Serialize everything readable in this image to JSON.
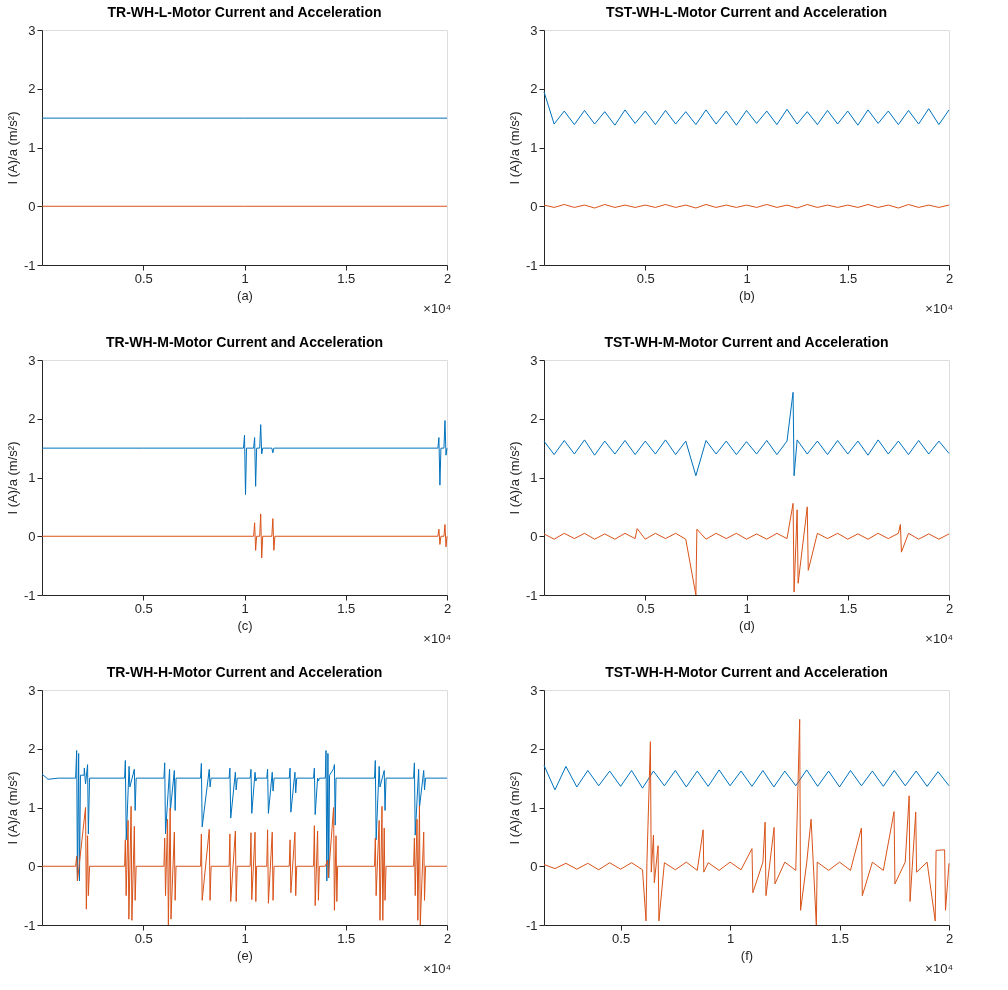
{
  "chart_data": [
    {
      "type": "line",
      "title": "TR-WH-L-Motor Current and Acceleration",
      "xlabel": "(a)",
      "ylabel": "I (A)/a (m/s²)",
      "annotations": [
        "×10⁴"
      ],
      "xlim": [
        0,
        2
      ],
      "xticks": [
        0.5,
        1,
        1.5,
        2
      ],
      "ylim": [
        -1,
        3
      ],
      "yticks": [
        -1,
        0,
        1,
        2,
        3
      ],
      "grid": false,
      "series": [
        {
          "color": "#0072bd",
          "x": [
            0,
            1,
            2
          ],
          "values": [
            1.5,
            1.5,
            1.5
          ]
        },
        {
          "color": "#d95319",
          "x": [
            0,
            1,
            2
          ],
          "values": [
            0,
            0,
            0
          ]
        }
      ]
    },
    {
      "type": "line",
      "title": "TST-WH-L-Motor Current and Acceleration",
      "xlabel": "(b)",
      "ylabel": "I (A)/a (m/s²)",
      "annotations": [
        "×10⁴"
      ],
      "xlim": [
        0,
        2
      ],
      "xticks": [
        0.5,
        1,
        1.5,
        2
      ],
      "ylim": [
        -1,
        3
      ],
      "yticks": [
        -1,
        0,
        1,
        2,
        3
      ],
      "grid": false,
      "x": [
        0,
        0.05,
        0.1,
        0.15,
        0.2,
        0.25,
        0.3,
        0.35,
        0.4,
        0.45,
        0.5,
        0.55,
        0.6,
        0.65,
        0.7,
        0.75,
        0.8,
        0.85,
        0.9,
        0.95,
        1,
        1.05,
        1.1,
        1.15,
        1.2,
        1.25,
        1.3,
        1.35,
        1.4,
        1.45,
        1.5,
        1.55,
        1.6,
        1.65,
        1.7,
        1.75,
        1.8,
        1.85,
        1.9,
        1.95,
        2
      ],
      "series": [
        {
          "color": "#0072bd",
          "values": [
            1.95,
            1.4,
            1.62,
            1.39,
            1.63,
            1.4,
            1.61,
            1.38,
            1.64,
            1.41,
            1.62,
            1.39,
            1.63,
            1.4,
            1.61,
            1.39,
            1.64,
            1.4,
            1.62,
            1.38,
            1.63,
            1.41,
            1.62,
            1.39,
            1.65,
            1.4,
            1.61,
            1.39,
            1.63,
            1.4,
            1.62,
            1.38,
            1.64,
            1.41,
            1.62,
            1.39,
            1.63,
            1.4,
            1.66,
            1.39,
            1.64
          ]
        },
        {
          "color": "#d95319",
          "values": [
            0.02,
            -0.02,
            0.03,
            -0.02,
            0.02,
            -0.03,
            0.03,
            -0.02,
            0.02,
            -0.02,
            0.02,
            -0.02,
            0.03,
            -0.02,
            0.02,
            -0.03,
            0.03,
            -0.02,
            0.02,
            -0.02,
            0.02,
            -0.02,
            0.03,
            -0.02,
            0.02,
            -0.03,
            0.03,
            -0.02,
            0.02,
            -0.02,
            0.02,
            -0.02,
            0.03,
            -0.02,
            0.02,
            -0.03,
            0.03,
            -0.02,
            0.02,
            -0.02,
            0.02
          ]
        }
      ]
    },
    {
      "type": "line",
      "title": "TR-WH-M-Motor Current and Acceleration",
      "xlabel": "(c)",
      "ylabel": "I (A)/a (m/s²)",
      "annotations": [
        "×10⁴"
      ],
      "xlim": [
        0,
        2
      ],
      "xticks": [
        0.5,
        1,
        1.5,
        2
      ],
      "ylim": [
        -1,
        3
      ],
      "yticks": [
        -1,
        0,
        1,
        2,
        3
      ],
      "grid": false,
      "series": [
        {
          "color": "#0072bd",
          "x": [
            0,
            0.5,
            0.995,
            1,
            1.005,
            1.01,
            1.045,
            1.05,
            1.055,
            1.06,
            1.075,
            1.08,
            1.085,
            1.09,
            1.135,
            1.14,
            1.145,
            1.15,
            1.955,
            1.96,
            1.965,
            1.97,
            1.985,
            1.99,
            1.995,
            2
          ],
          "values": [
            1.5,
            1.5,
            1.5,
            1.72,
            0.71,
            1.5,
            1.5,
            1.68,
            0.85,
            1.5,
            1.5,
            1.9,
            1.4,
            1.5,
            1.5,
            1.42,
            1.5,
            1.5,
            1.5,
            1.68,
            0.87,
            1.5,
            1.5,
            1.97,
            1.38,
            1.5
          ]
        },
        {
          "color": "#d95319",
          "x": [
            0,
            1.045,
            1.05,
            1.055,
            1.06,
            1.075,
            1.08,
            1.085,
            1.09,
            1.135,
            1.14,
            1.145,
            1.15,
            1.955,
            1.96,
            1.965,
            1.97,
            1.985,
            1.99,
            1.995,
            2
          ],
          "values": [
            0,
            0,
            0.23,
            -0.24,
            0,
            0,
            0.38,
            -0.37,
            0,
            0,
            0.3,
            -0.24,
            0,
            0,
            0.12,
            -0.14,
            0,
            0,
            0.2,
            -0.18,
            0
          ]
        }
      ]
    },
    {
      "type": "line",
      "title": "TST-WH-M-Motor Current and Acceleration",
      "xlabel": "(d)",
      "ylabel": "I (A)/a (m/s²)",
      "annotations": [
        "×10⁴"
      ],
      "xlim": [
        0,
        2
      ],
      "xticks": [
        0.5,
        1,
        1.5,
        2
      ],
      "ylim": [
        -1,
        3
      ],
      "yticks": [
        -1,
        0,
        1,
        2,
        3
      ],
      "grid": false,
      "series": [
        {
          "color": "#0072bd",
          "x": [
            0,
            0.05,
            0.1,
            0.15,
            0.2,
            0.25,
            0.3,
            0.35,
            0.4,
            0.45,
            0.5,
            0.55,
            0.6,
            0.65,
            0.7,
            0.75,
            0.8,
            0.85,
            0.9,
            0.95,
            1,
            1.05,
            1.1,
            1.15,
            1.2,
            1.23,
            1.235,
            1.25,
            1.3,
            1.35,
            1.4,
            1.45,
            1.5,
            1.55,
            1.6,
            1.65,
            1.7,
            1.75,
            1.8,
            1.85,
            1.9,
            1.95,
            2
          ],
          "values": [
            1.62,
            1.39,
            1.63,
            1.4,
            1.64,
            1.38,
            1.62,
            1.4,
            1.63,
            1.39,
            1.62,
            1.4,
            1.64,
            1.39,
            1.62,
            1.03,
            1.63,
            1.4,
            1.62,
            1.39,
            1.61,
            1.4,
            1.63,
            1.39,
            1.62,
            2.45,
            1.03,
            1.64,
            1.4,
            1.62,
            1.39,
            1.63,
            1.4,
            1.62,
            1.38,
            1.64,
            1.4,
            1.62,
            1.39,
            1.63,
            1.4,
            1.62,
            1.41
          ]
        },
        {
          "color": "#d95319",
          "x": [
            0,
            0.05,
            0.1,
            0.15,
            0.2,
            0.25,
            0.3,
            0.35,
            0.4,
            0.45,
            0.46,
            0.5,
            0.55,
            0.6,
            0.65,
            0.7,
            0.75,
            0.755,
            0.8,
            0.85,
            0.9,
            0.95,
            1,
            1.05,
            1.1,
            1.15,
            1.2,
            1.23,
            1.235,
            1.25,
            1.255,
            1.3,
            1.305,
            1.35,
            1.4,
            1.45,
            1.5,
            1.55,
            1.6,
            1.65,
            1.7,
            1.75,
            1.76,
            1.765,
            1.8,
            1.85,
            1.9,
            1.95,
            2
          ],
          "values": [
            0.04,
            -0.05,
            0.05,
            -0.04,
            0.05,
            -0.05,
            0.04,
            -0.05,
            0.05,
            -0.04,
            0.13,
            -0.05,
            0.05,
            -0.04,
            0.05,
            -0.05,
            -1.0,
            0.12,
            -0.05,
            0.05,
            -0.04,
            0.05,
            -0.05,
            0.04,
            -0.05,
            0.05,
            -0.04,
            0.56,
            -0.95,
            0.45,
            -0.8,
            0.5,
            -0.58,
            0.05,
            -0.04,
            0.05,
            -0.05,
            0.04,
            -0.05,
            0.05,
            -0.04,
            0.05,
            0.2,
            -0.27,
            0.05,
            -0.05,
            0.04,
            -0.05,
            0.04
          ]
        }
      ]
    },
    {
      "type": "line",
      "title": "TR-WH-H-Motor Current and Acceleration",
      "xlabel": "(e)",
      "ylabel": "I (A)/a (m/s²)",
      "annotations": [
        "×10⁴"
      ],
      "xlim": [
        0,
        2
      ],
      "xticks": [
        0.5,
        1,
        1.5,
        2
      ],
      "ylim": [
        -1,
        3
      ],
      "yticks": [
        -1,
        0,
        1,
        2,
        3
      ],
      "grid": false,
      "series": [
        {
          "color": "#0072bd",
          "x": [
            0,
            0.03,
            0.08,
            0.166,
            0.1712,
            0.175,
            0.181,
            0.185,
            0.19,
            0.208,
            0.209,
            0.215,
            0.225,
            0.229,
            0.235,
            0.408,
            0.4115,
            0.416,
            0.43,
            0.434,
            0.456,
            0.46,
            0.465,
            0.602,
            0.606,
            0.61,
            0.63,
            0.634,
            0.6535,
            0.6575,
            0.662,
            0.783,
            0.787,
            0.791,
            0.826,
            0.83,
            0.835,
            0.924,
            0.928,
            0.932,
            0.955,
            0.959,
            0.964,
            1.028,
            1.032,
            1.036,
            1.052,
            1.056,
            1.06,
            1.11,
            1.114,
            1.118,
            1.137,
            1.141,
            1.146,
            1.221,
            1.225,
            1.229,
            1.249,
            1.253,
            1.258,
            1.341,
            1.345,
            1.349,
            1.361,
            1.365,
            1.37,
            1.399,
            1.4025,
            1.4065,
            1.412,
            1.416,
            1.42,
            1.44,
            1.444,
            1.448,
            1.452,
            1.642,
            1.646,
            1.65,
            1.665,
            1.669,
            1.69,
            1.694,
            1.699,
            1.835,
            1.839,
            1.843,
            1.86,
            1.864,
            1.885,
            1.889,
            1.894,
            2
          ],
          "values": [
            1.57,
            1.48,
            1.5,
            1.5,
            1.97,
            -0.25,
            1.92,
            -0.25,
            1.55,
            1.55,
            1.67,
            1.4,
            1.73,
            0.55,
            1.5,
            1.5,
            1.8,
            0.45,
            1.7,
            1.35,
            1.65,
            0.95,
            1.5,
            1.5,
            1.76,
            0.55,
            1.65,
            0.95,
            1.63,
            0.95,
            1.5,
            1.5,
            1.75,
            0.67,
            1.65,
            1.35,
            1.5,
            1.5,
            1.67,
            0.82,
            1.6,
            1.3,
            1.5,
            1.5,
            1.65,
            0.9,
            1.6,
            1.45,
            1.5,
            1.5,
            1.65,
            0.9,
            1.6,
            1.28,
            1.5,
            1.5,
            1.67,
            0.92,
            1.6,
            1.25,
            1.5,
            1.5,
            1.67,
            0.88,
            1.5,
            1.45,
            1.5,
            1.5,
            1.97,
            -0.25,
            1.92,
            -0.2,
            1.55,
            1.66,
            1.73,
            0.7,
            1.5,
            1.5,
            1.8,
            0.45,
            1.7,
            1.35,
            1.63,
            0.95,
            1.5,
            1.5,
            1.76,
            0.53,
            1.65,
            1.0,
            1.63,
            1.3,
            1.5,
            1.5
          ]
        },
        {
          "color": "#d95319",
          "x": [
            0,
            0.166,
            0.1712,
            0.175,
            0.215,
            0.219,
            0.225,
            0.229,
            0.235,
            0.408,
            0.4115,
            0.4155,
            0.425,
            0.429,
            0.44,
            0.444,
            0.456,
            0.46,
            0.465,
            0.602,
            0.606,
            0.61,
            0.62,
            0.624,
            0.633,
            0.637,
            0.6535,
            0.6575,
            0.662,
            0.783,
            0.787,
            0.791,
            0.826,
            0.83,
            0.835,
            0.924,
            0.928,
            0.932,
            0.955,
            0.959,
            0.964,
            1.028,
            1.032,
            1.036,
            1.052,
            1.056,
            1.06,
            1.11,
            1.114,
            1.118,
            1.137,
            1.141,
            1.146,
            1.221,
            1.225,
            1.229,
            1.249,
            1.253,
            1.258,
            1.341,
            1.345,
            1.349,
            1.361,
            1.365,
            1.37,
            1.399,
            1.41,
            1.414,
            1.44,
            1.444,
            1.452,
            1.456,
            1.46,
            1.642,
            1.646,
            1.65,
            1.665,
            1.669,
            1.679,
            1.683,
            1.69,
            1.694,
            1.699,
            1.835,
            1.839,
            1.843,
            1.852,
            1.856,
            1.864,
            1.868,
            1.885,
            1.889,
            1.894,
            2
          ],
          "values": [
            0,
            0,
            0.17,
            -0.25,
            1.0,
            -0.73,
            0.52,
            -0.5,
            0,
            0,
            0.45,
            -0.5,
            0.78,
            -0.9,
            1.02,
            -0.92,
            0.68,
            -0.58,
            0,
            0,
            0.48,
            -0.5,
            0.8,
            -1.0,
            0.99,
            -0.9,
            0.58,
            -0.58,
            0,
            0,
            0.55,
            -0.58,
            0.63,
            -0.58,
            0,
            0,
            0.55,
            -0.6,
            0.6,
            -0.6,
            0,
            0,
            0.57,
            -0.57,
            0.58,
            -0.6,
            0,
            0,
            0.62,
            -0.63,
            0.58,
            -0.58,
            0,
            0,
            0.45,
            -0.45,
            0.58,
            -0.5,
            0,
            0,
            0.69,
            -0.67,
            0.6,
            -0.58,
            0,
            0,
            0.1,
            -0.2,
            1.0,
            -0.75,
            0.52,
            -0.6,
            0,
            0,
            0.48,
            -0.5,
            0.78,
            -0.92,
            1.02,
            -0.92,
            0.65,
            -0.58,
            0,
            0,
            0.48,
            -0.5,
            0.8,
            -0.92,
            1.03,
            -1.0,
            0.58,
            -0.58,
            0,
            0
          ]
        }
      ]
    },
    {
      "type": "line",
      "title": "TST-WH-H-Motor Current and Acceleration",
      "xlabel": "(f)",
      "ylabel": "I (A)/a (m/s²)",
      "annotations": [
        "×10⁴"
      ],
      "xlim": [
        0.15,
        2
      ],
      "xticks": [
        0.5,
        1,
        1.5,
        2
      ],
      "ylim": [
        -1,
        3
      ],
      "yticks": [
        -1,
        0,
        1,
        2,
        3
      ],
      "grid": false,
      "series": [
        {
          "color": "#0072bd",
          "x": [
            0.15,
            0.2,
            0.25,
            0.3,
            0.35,
            0.4,
            0.45,
            0.5,
            0.55,
            0.6,
            0.65,
            0.7,
            0.75,
            0.8,
            0.85,
            0.9,
            0.95,
            1,
            1.05,
            1.1,
            1.15,
            1.2,
            1.25,
            1.3,
            1.35,
            1.4,
            1.45,
            1.5,
            1.55,
            1.6,
            1.65,
            1.7,
            1.75,
            1.8,
            1.85,
            1.9,
            1.95,
            2
          ],
          "values": [
            1.72,
            1.3,
            1.7,
            1.35,
            1.63,
            1.37,
            1.62,
            1.36,
            1.63,
            1.33,
            1.62,
            1.37,
            1.63,
            1.35,
            1.62,
            1.36,
            1.64,
            1.37,
            1.62,
            1.36,
            1.63,
            1.35,
            1.62,
            1.37,
            1.64,
            1.36,
            1.62,
            1.35,
            1.63,
            1.37,
            1.62,
            1.36,
            1.63,
            1.37,
            1.62,
            1.36,
            1.61,
            1.37
          ]
        },
        {
          "color": "#d95319",
          "x": [
            0.15,
            0.2,
            0.25,
            0.3,
            0.35,
            0.4,
            0.45,
            0.5,
            0.55,
            0.6,
            0.616,
            0.62,
            0.636,
            0.64,
            0.65,
            0.654,
            0.671,
            0.675,
            0.7,
            0.75,
            0.8,
            0.85,
            0.877,
            0.88,
            0.9,
            0.95,
            1,
            1.05,
            1.1,
            1.104,
            1.15,
            1.16,
            1.164,
            1.201,
            1.205,
            1.25,
            1.3,
            1.318,
            1.322,
            1.35,
            1.37,
            1.394,
            1.398,
            1.45,
            1.5,
            1.55,
            1.6,
            1.604,
            1.65,
            1.7,
            1.749,
            1.753,
            1.8,
            1.818,
            1.822,
            1.848,
            1.852,
            1.9,
            1.937,
            1.941,
            1.98,
            1.984,
            2
          ],
          "values": [
            0.03,
            -0.04,
            0.05,
            -0.05,
            0.05,
            -0.06,
            0.06,
            -0.05,
            0.06,
            -0.06,
            -0.93,
            0.05,
            2.12,
            -0.1,
            0.53,
            -0.28,
            0.35,
            -0.93,
            0.06,
            -0.06,
            0.07,
            -0.07,
            0.62,
            -0.1,
            0.06,
            -0.07,
            0.07,
            -0.06,
            0.3,
            -0.45,
            0.07,
            0.75,
            -0.5,
            0.66,
            -0.3,
            0.07,
            -0.07,
            2.5,
            -0.75,
            0.06,
            0.8,
            -1.0,
            0.07,
            -0.07,
            0.07,
            -0.07,
            0.65,
            -0.5,
            0.07,
            -0.07,
            0.93,
            -0.3,
            0.07,
            1.2,
            -0.6,
            0.92,
            -0.1,
            0.07,
            -0.93,
            0.27,
            0.28,
            -0.75,
            0.05
          ]
        }
      ]
    }
  ]
}
